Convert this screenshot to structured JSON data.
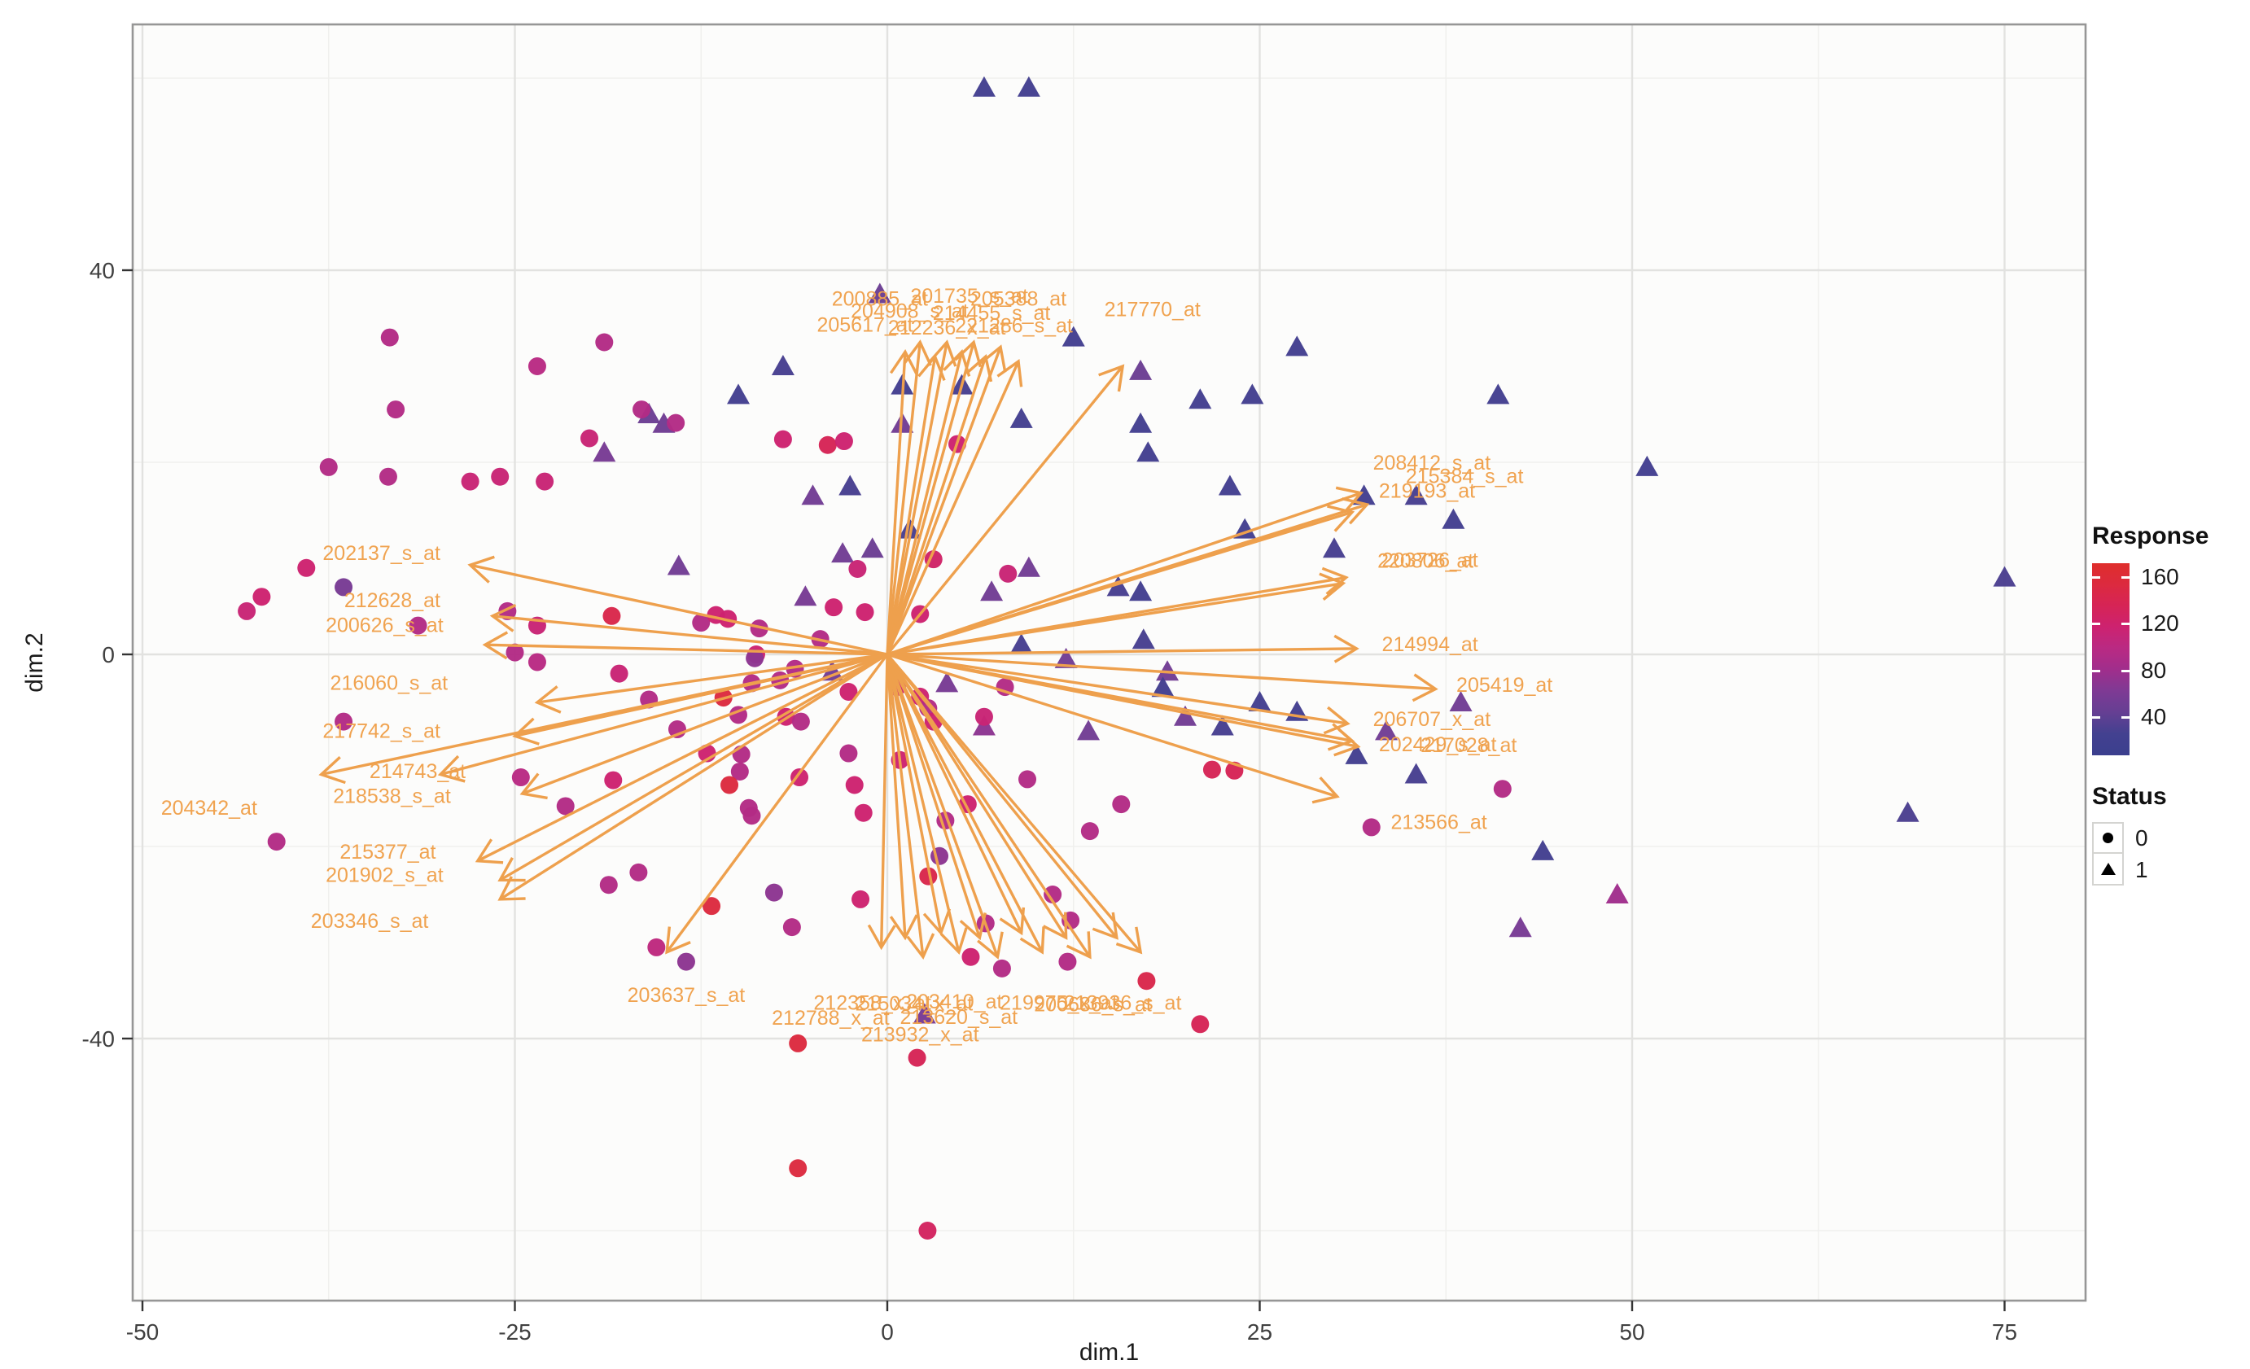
{
  "chart_data": {
    "type": "scatter",
    "subtype": "pca-biplot",
    "title": "",
    "xlabel": "dim.1",
    "ylabel": "dim.2",
    "xlim": [
      -50.7,
      80.4
    ],
    "ylim": [
      -67.3,
      65.6
    ],
    "x_ticks": [
      -50,
      -25,
      0,
      25,
      50,
      75
    ],
    "y_ticks": [
      40,
      0,
      -40
    ],
    "x_minor": [
      -37.5,
      -12.5,
      12.5,
      37.5,
      62.5
    ],
    "y_minor": [
      60,
      20,
      -20,
      -60
    ],
    "grid": true,
    "legend_position": "right",
    "points_format": "[dim1, dim2, response, status] ; status 0 = circle, 1 = triangle",
    "points": [
      [
        6.5,
        59,
        12,
        1
      ],
      [
        9.5,
        59,
        12,
        1
      ],
      [
        -0.5,
        37.5,
        45,
        1
      ],
      [
        12.5,
        33,
        12,
        1
      ],
      [
        27.5,
        32,
        12,
        1
      ],
      [
        -7,
        30,
        15,
        1
      ],
      [
        -10,
        27,
        12,
        1
      ],
      [
        -16,
        25,
        45,
        1
      ],
      [
        -15,
        24,
        48,
        1
      ],
      [
        -19,
        21,
        55,
        1
      ],
      [
        1,
        28,
        12,
        1
      ],
      [
        5,
        28,
        15,
        1
      ],
      [
        9,
        24.5,
        12,
        1
      ],
      [
        24.5,
        27,
        12,
        1
      ],
      [
        17,
        29.5,
        45,
        1
      ],
      [
        21,
        26.5,
        12,
        1
      ],
      [
        17,
        24,
        12,
        1
      ],
      [
        17.5,
        21,
        12,
        1
      ],
      [
        41,
        27,
        12,
        1
      ],
      [
        51,
        19.5,
        12,
        1
      ],
      [
        75,
        8,
        18,
        1
      ],
      [
        -2.5,
        17.5,
        15,
        1
      ],
      [
        -5,
        16.5,
        50,
        1
      ],
      [
        1,
        24,
        50,
        1
      ],
      [
        1.5,
        13,
        15,
        1
      ],
      [
        -3,
        10.5,
        50,
        1
      ],
      [
        -1,
        11,
        45,
        1
      ],
      [
        -5.5,
        6,
        55,
        1
      ],
      [
        -14,
        9.2,
        50,
        1
      ],
      [
        7,
        6.5,
        50,
        1
      ],
      [
        9.5,
        9,
        50,
        1
      ],
      [
        15.5,
        7,
        15,
        1
      ],
      [
        17,
        6.5,
        12,
        1
      ],
      [
        23,
        17.5,
        12,
        1
      ],
      [
        24,
        13,
        12,
        1
      ],
      [
        30,
        11,
        15,
        1
      ],
      [
        32,
        16.5,
        12,
        1
      ],
      [
        35.5,
        16.5,
        15,
        1
      ],
      [
        38,
        14,
        12,
        1
      ],
      [
        9,
        1,
        15,
        1
      ],
      [
        12,
        -0.5,
        50,
        1
      ],
      [
        17.2,
        1.5,
        15,
        1
      ],
      [
        18.8,
        -1.8,
        50,
        1
      ],
      [
        4,
        -3,
        55,
        1
      ],
      [
        -3.7,
        -1.8,
        50,
        1
      ],
      [
        6.5,
        -7.5,
        70,
        1
      ],
      [
        13.5,
        -8,
        50,
        1
      ],
      [
        20,
        -6.5,
        50,
        1
      ],
      [
        22.5,
        -7.5,
        15,
        1
      ],
      [
        18.5,
        -3.5,
        12,
        1
      ],
      [
        25,
        -5,
        12,
        1
      ],
      [
        27.5,
        -6,
        12,
        1
      ],
      [
        31.5,
        -10.5,
        12,
        1
      ],
      [
        35.5,
        -12.5,
        15,
        1
      ],
      [
        33.5,
        -8,
        50,
        1
      ],
      [
        38.5,
        -5,
        50,
        1
      ],
      [
        44,
        -20.5,
        12,
        1
      ],
      [
        42.5,
        -28.5,
        55,
        1
      ],
      [
        49,
        -25,
        85,
        1
      ],
      [
        68.5,
        -16.5,
        18,
        1
      ],
      [
        2.5,
        -37.5,
        55,
        1
      ],
      [
        -43,
        4.5,
        120,
        0
      ],
      [
        -42,
        6,
        125,
        0
      ],
      [
        -39,
        9,
        125,
        0
      ],
      [
        -36.5,
        7,
        55,
        0
      ],
      [
        -33.4,
        33,
        100,
        0
      ],
      [
        -33,
        25.5,
        100,
        0
      ],
      [
        -23.5,
        30,
        105,
        0
      ],
      [
        -19,
        32.5,
        100,
        0
      ],
      [
        -37.5,
        19.5,
        100,
        0
      ],
      [
        -33.5,
        18.5,
        100,
        0
      ],
      [
        -28,
        18,
        120,
        0
      ],
      [
        -26,
        18.5,
        120,
        0
      ],
      [
        -23,
        18,
        120,
        0
      ],
      [
        -20,
        22.5,
        120,
        0
      ],
      [
        -16.5,
        25.5,
        100,
        0
      ],
      [
        -14.2,
        24.1,
        100,
        0
      ],
      [
        -7,
        22.4,
        125,
        0
      ],
      [
        -4,
        21.8,
        140,
        0
      ],
      [
        -2.9,
        22.2,
        125,
        0
      ],
      [
        4.7,
        21.9,
        125,
        0
      ],
      [
        -2,
        8.9,
        120,
        0
      ],
      [
        3.1,
        9.9,
        130,
        0
      ],
      [
        8.1,
        8.4,
        120,
        0
      ],
      [
        -31.5,
        3,
        100,
        0
      ],
      [
        -25.5,
        4.5,
        100,
        0
      ],
      [
        -23.5,
        3,
        120,
        0
      ],
      [
        -18.5,
        4,
        145,
        0
      ],
      [
        -12.5,
        3.3,
        100,
        0
      ],
      [
        -11.5,
        4.1,
        125,
        0
      ],
      [
        -10.7,
        3.7,
        125,
        0
      ],
      [
        -8.6,
        2.7,
        100,
        0
      ],
      [
        -8.8,
        0,
        125,
        0
      ],
      [
        -4.5,
        1.6,
        100,
        0
      ],
      [
        -3.6,
        4.9,
        125,
        0
      ],
      [
        -1.5,
        4.4,
        125,
        0
      ],
      [
        2.2,
        4.2,
        125,
        0
      ],
      [
        -25,
        0.2,
        100,
        0
      ],
      [
        -23.5,
        -0.8,
        105,
        0
      ],
      [
        -18,
        -2,
        120,
        0
      ],
      [
        -16,
        -4.7,
        100,
        0
      ],
      [
        -11,
        -4.5,
        150,
        0
      ],
      [
        -7.2,
        -2.7,
        100,
        0
      ],
      [
        -8.9,
        -0.4,
        70,
        0
      ],
      [
        -6.2,
        -1.5,
        100,
        0
      ],
      [
        -9.1,
        -3,
        100,
        0
      ],
      [
        -2.6,
        -3.9,
        125,
        0
      ],
      [
        0.65,
        -3.4,
        125,
        0
      ],
      [
        2.2,
        -4.4,
        125,
        0
      ],
      [
        2.75,
        -5.6,
        100,
        0
      ],
      [
        3.1,
        -7,
        125,
        0
      ],
      [
        7.9,
        -3.4,
        100,
        0
      ],
      [
        -10,
        -6.3,
        100,
        0
      ],
      [
        -6.8,
        -6.5,
        125,
        0
      ],
      [
        -5.8,
        -7,
        100,
        0
      ],
      [
        6.5,
        -6.5,
        120,
        0
      ],
      [
        -14.1,
        -7.8,
        100,
        0
      ],
      [
        -12.1,
        -10.3,
        125,
        0
      ],
      [
        -9.8,
        -10.4,
        100,
        0
      ],
      [
        -9.9,
        -12.2,
        100,
        0
      ],
      [
        -10.6,
        -13.6,
        150,
        0
      ],
      [
        -18.4,
        -13.1,
        125,
        0
      ],
      [
        -21.6,
        -15.8,
        100,
        0
      ],
      [
        -24.6,
        -12.8,
        105,
        0
      ],
      [
        -9.3,
        -16,
        100,
        0
      ],
      [
        -9.1,
        -16.8,
        100,
        0
      ],
      [
        -36.5,
        -7,
        100,
        0
      ],
      [
        -41,
        -19.5,
        100,
        0
      ],
      [
        -2.6,
        -10.3,
        100,
        0
      ],
      [
        -2.2,
        -13.6,
        125,
        0
      ],
      [
        -1.6,
        -16.5,
        125,
        0
      ],
      [
        0.85,
        -11,
        125,
        0
      ],
      [
        9.4,
        -13,
        100,
        0
      ],
      [
        5.4,
        -15.6,
        125,
        0
      ],
      [
        3.9,
        -17.3,
        100,
        0
      ],
      [
        15.7,
        -15.6,
        100,
        0
      ],
      [
        13.6,
        -18.4,
        100,
        0
      ],
      [
        21.8,
        -12,
        140,
        0
      ],
      [
        23.3,
        -12.1,
        140,
        0
      ],
      [
        -16.7,
        -22.7,
        100,
        0
      ],
      [
        -18.7,
        -24,
        100,
        0
      ],
      [
        -5.9,
        -12.8,
        125,
        0
      ],
      [
        -7.6,
        -24.8,
        70,
        0
      ],
      [
        -11.8,
        -26.2,
        150,
        0
      ],
      [
        -6.4,
        -28.4,
        100,
        0
      ],
      [
        -1.8,
        -25.5,
        125,
        0
      ],
      [
        2.75,
        -23.1,
        145,
        0
      ],
      [
        3.5,
        -21,
        70,
        0
      ],
      [
        -15.5,
        -30.5,
        110,
        0
      ],
      [
        -13.5,
        -32,
        70,
        0
      ],
      [
        5.6,
        -31.5,
        125,
        0
      ],
      [
        7.7,
        -32.7,
        100,
        0
      ],
      [
        12.1,
        -32,
        100,
        0
      ],
      [
        12.3,
        -27.7,
        100,
        0
      ],
      [
        11.1,
        -25,
        100,
        0
      ],
      [
        6.6,
        -28,
        100,
        0
      ],
      [
        32.5,
        -18,
        100,
        0
      ],
      [
        41.3,
        -14,
        100,
        0
      ],
      [
        17.4,
        -34,
        145,
        0
      ],
      [
        21,
        -38.5,
        140,
        0
      ],
      [
        -6,
        -40.5,
        150,
        0
      ],
      [
        2,
        -42,
        140,
        0
      ],
      [
        -6,
        -53.5,
        150,
        0
      ],
      [
        2.7,
        -60,
        135,
        0
      ]
    ],
    "arrows_from_origin": [
      [
        -28,
        9.3
      ],
      [
        -26.5,
        4.0
      ],
      [
        -27,
        1.0
      ],
      [
        -23.5,
        -5.0
      ],
      [
        -25,
        -8.5
      ],
      [
        -30,
        -12.5
      ],
      [
        -24.5,
        -14.5
      ],
      [
        -38,
        -12.5
      ],
      [
        -27.5,
        -21.5
      ],
      [
        -26,
        -23.5
      ],
      [
        -26,
        -25.5
      ],
      [
        -14.8,
        -31
      ],
      [
        1.2,
        31.5
      ],
      [
        2.2,
        32.5
      ],
      [
        3.2,
        31
      ],
      [
        4,
        32.5
      ],
      [
        5,
        31.5
      ],
      [
        5.8,
        32.5
      ],
      [
        6.6,
        31
      ],
      [
        7.6,
        32
      ],
      [
        8.8,
        30.5
      ],
      [
        15.8,
        30
      ],
      [
        31.8,
        16.8
      ],
      [
        32.2,
        15.6
      ],
      [
        31.2,
        14.8
      ],
      [
        30.8,
        8.0
      ],
      [
        30.6,
        7.4
      ],
      [
        31.5,
        0.6
      ],
      [
        36.8,
        -3.6
      ],
      [
        30.9,
        -7.2
      ],
      [
        31.2,
        -9.0
      ],
      [
        31.6,
        -9.6
      ],
      [
        30.2,
        -14.8
      ],
      [
        -0.4,
        -30.5
      ],
      [
        1.2,
        -29.5
      ],
      [
        2.4,
        -31.5
      ],
      [
        3.6,
        -29
      ],
      [
        4.8,
        -31
      ],
      [
        6.2,
        -29.5
      ],
      [
        7.4,
        -31.5
      ],
      [
        9,
        -29
      ],
      [
        10.4,
        -31
      ],
      [
        12,
        -29.5
      ],
      [
        13.6,
        -31.5
      ],
      [
        15.4,
        -29.5
      ],
      [
        17,
        -31
      ]
    ],
    "arrow_labels": [
      {
        "text": "202137_s_at",
        "x": -30,
        "y": 10.5,
        "anchor": "end"
      },
      {
        "text": "212628_at",
        "x": -30,
        "y": 5.6,
        "anchor": "end"
      },
      {
        "text": "200626_s_at",
        "x": -29.8,
        "y": 3.0,
        "anchor": "end"
      },
      {
        "text": "216060_s_at",
        "x": -29.5,
        "y": -3.0,
        "anchor": "end"
      },
      {
        "text": "217742_s_at",
        "x": -30,
        "y": -8.0,
        "anchor": "end"
      },
      {
        "text": "214743_at",
        "x": -28.3,
        "y": -12.2,
        "anchor": "end"
      },
      {
        "text": "218538_s_at",
        "x": -29.3,
        "y": -14.8,
        "anchor": "end"
      },
      {
        "text": "204342_at",
        "x": -42.3,
        "y": -16.0,
        "anchor": "end"
      },
      {
        "text": "215377_at",
        "x": -30.3,
        "y": -20.6,
        "anchor": "end"
      },
      {
        "text": "201902_s_at",
        "x": -29.8,
        "y": -23.0,
        "anchor": "end"
      },
      {
        "text": "203346_s_at",
        "x": -30.8,
        "y": -27.8,
        "anchor": "end"
      },
      {
        "text": "203637_s_at",
        "x": -13.5,
        "y": -35.5,
        "anchor": "middle"
      },
      {
        "text": "200885_at",
        "x": -0.5,
        "y": 37.0,
        "anchor": "middle"
      },
      {
        "text": "201735_s_at",
        "x": 5.5,
        "y": 37.3,
        "anchor": "middle"
      },
      {
        "text": "205388_at",
        "x": 8.8,
        "y": 37.0,
        "anchor": "middle"
      },
      {
        "text": "204908_s_at",
        "x": 1.5,
        "y": 35.7,
        "anchor": "middle"
      },
      {
        "text": "214455_s_at",
        "x": 7,
        "y": 35.5,
        "anchor": "middle"
      },
      {
        "text": "205617_at",
        "x": -1.5,
        "y": 34.3,
        "anchor": "middle"
      },
      {
        "text": "212236_x_at",
        "x": 4,
        "y": 34.0,
        "anchor": "middle"
      },
      {
        "text": "221286_s_at",
        "x": 8.5,
        "y": 34.2,
        "anchor": "middle"
      },
      {
        "text": "217770_at",
        "x": 17.8,
        "y": 35.9,
        "anchor": "middle"
      },
      {
        "text": "208412_s_at",
        "x": 32.6,
        "y": 19.9,
        "anchor": "start"
      },
      {
        "text": "215384_s_at",
        "x": 34.8,
        "y": 18.5,
        "anchor": "start"
      },
      {
        "text": "219193_at",
        "x": 33,
        "y": 17.0,
        "anchor": "start"
      },
      {
        "text": "203726_at",
        "x": 33.2,
        "y": 9.8,
        "anchor": "start"
      },
      {
        "text": "220806_at",
        "x": 32.9,
        "y": 9.7,
        "anchor": "start"
      },
      {
        "text": "214994_at",
        "x": 33.2,
        "y": 1.0,
        "anchor": "start"
      },
      {
        "text": "205419_at",
        "x": 38.2,
        "y": -3.2,
        "anchor": "start"
      },
      {
        "text": "206707_x_at",
        "x": 32.6,
        "y": -6.8,
        "anchor": "start"
      },
      {
        "text": "202429_s_at",
        "x": 33,
        "y": -9.4,
        "anchor": "start"
      },
      {
        "text": "217028_at",
        "x": 35.8,
        "y": -9.5,
        "anchor": "start"
      },
      {
        "text": "213566_at",
        "x": 33.8,
        "y": -17.5,
        "anchor": "start"
      },
      {
        "text": "212358_x_at",
        "x": -1,
        "y": -36.3,
        "anchor": "middle"
      },
      {
        "text": "215034_x_at",
        "x": 1.8,
        "y": -36.4,
        "anchor": "middle"
      },
      {
        "text": "203410_at",
        "x": 4.5,
        "y": -36.2,
        "anchor": "middle"
      },
      {
        "text": "219975_x_at",
        "x": 11.5,
        "y": -36.3,
        "anchor": "middle"
      },
      {
        "text": "200686_s_at",
        "x": 13.8,
        "y": -36.5,
        "anchor": "middle"
      },
      {
        "text": "213936_s_at",
        "x": 15.8,
        "y": -36.3,
        "anchor": "middle"
      },
      {
        "text": "212788_x_at",
        "x": -3.8,
        "y": -37.9,
        "anchor": "middle"
      },
      {
        "text": "213620_s_at",
        "x": 4.8,
        "y": -37.8,
        "anchor": "middle"
      },
      {
        "text": "213932_x_at",
        "x": 2.2,
        "y": -39.6,
        "anchor": "middle"
      }
    ],
    "legend": {
      "response": {
        "title": "Response",
        "ticks": [
          160,
          120,
          80,
          40
        ],
        "bar_domain_top": 172,
        "bar_domain_bottom": 7,
        "gradient_top_to_bottom": [
          "#df2e2b",
          "#dc2a3f",
          "#d62456",
          "#cd2270",
          "#b92a83",
          "#a02e8c",
          "#7e3a94",
          "#653f93",
          "#434190",
          "#3b3f8e"
        ]
      },
      "status": {
        "title": "Status",
        "items": [
          {
            "symbol": "circle",
            "label": "0"
          },
          {
            "symbol": "triangle",
            "label": "1"
          }
        ]
      }
    },
    "colors": {
      "arrow": "#eea04d",
      "arrow_label": "#f0a350",
      "grid_major": "#e2e2e0",
      "grid_minor": "#f0f0ee",
      "panel_border": "#969696",
      "panel_bg": "#fcfcfb",
      "tick_text": "#404040",
      "axis_title": "#1a1a1a",
      "scale_stops": [
        [
          5,
          "#3b3f8e"
        ],
        [
          40,
          "#653f93"
        ],
        [
          60,
          "#7e3a94"
        ],
        [
          85,
          "#a02e8c"
        ],
        [
          105,
          "#b92a83"
        ],
        [
          125,
          "#cd2270"
        ],
        [
          140,
          "#d62456"
        ],
        [
          150,
          "#dc2a3f"
        ],
        [
          165,
          "#df2e2b"
        ]
      ]
    }
  }
}
